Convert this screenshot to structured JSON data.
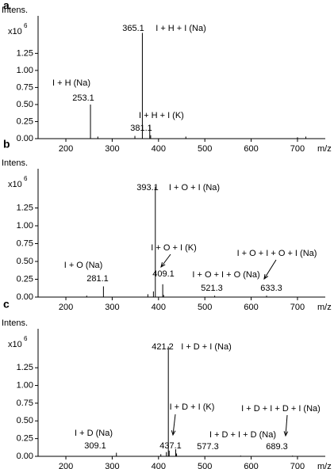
{
  "chart_data": [
    {
      "type": "stick",
      "panel": "a",
      "y_label": "Intens.",
      "multiplier": "x10",
      "exponent": "6",
      "x_label": "m/z",
      "xlim": [
        140,
        760
      ],
      "xticks": [
        200,
        300,
        400,
        500,
        600,
        700
      ],
      "ylim": [
        0,
        1.8
      ],
      "yticks": [
        {
          "value": 0,
          "label": "0.00"
        },
        0.25,
        {
          "value": 0.5,
          "label": "0.50"
        },
        0.75,
        {
          "value": 1,
          "label": "1.00"
        },
        1.25
      ],
      "color": "#000000",
      "peaks": [
        {
          "mz": 253.1,
          "intensity": 0.5,
          "label": "I + H (Na)"
        },
        {
          "mz": 365.1,
          "intensity": 1.55,
          "label": "I + H + I (Na)"
        },
        {
          "mz": 381.1,
          "intensity": 0.2,
          "label": "I + H + I (K)"
        }
      ],
      "minor_peaks": {
        "x": [
          269,
          349,
          383,
          459,
          700,
          718
        ],
        "values": [
          0.03,
          0.04,
          0.05,
          0.03,
          0.02,
          0.03
        ]
      }
    },
    {
      "type": "stick",
      "panel": "b",
      "y_label": "Intens.",
      "multiplier": "x10",
      "exponent": "6",
      "x_label": "m/z",
      "xlim": [
        140,
        760
      ],
      "xticks": [
        200,
        300,
        400,
        500,
        600,
        700
      ],
      "ylim": [
        0,
        1.8
      ],
      "yticks": [
        {
          "value": 0,
          "label": "0.00"
        },
        0.25,
        {
          "value": 0.5,
          "label": "0.50"
        },
        0.75,
        {
          "value": 1,
          "label": "1.00"
        },
        1.25
      ],
      "color": "#000000",
      "peaks": [
        {
          "mz": 281.1,
          "intensity": 0.15,
          "label": "I + O (Na)"
        },
        {
          "mz": 393.1,
          "intensity": 1.55,
          "label": "I + O + I (Na)"
        },
        {
          "mz": 409.1,
          "intensity": 0.18,
          "label": "I + O + I (K)"
        },
        {
          "mz": 521.3,
          "intensity": 0.02,
          "label": "I + O + I + O (Na)"
        },
        {
          "mz": 633.3,
          "intensity": 0.02,
          "label": "I + O + I + O + I (Na)"
        }
      ],
      "minor_peaks": {
        "x": [
          245,
          377,
          389,
          411
        ],
        "values": [
          0.02,
          0.04,
          0.08,
          0.03
        ]
      }
    },
    {
      "type": "stick",
      "panel": "c",
      "y_label": "Intens.",
      "multiplier": "x10",
      "exponent": "6",
      "x_label": "m/z",
      "xlim": [
        140,
        760
      ],
      "xticks": [
        200,
        300,
        400,
        500,
        600,
        700
      ],
      "ylim": [
        0,
        1.8
      ],
      "yticks": [
        {
          "value": 0,
          "label": "0.00"
        },
        0.25,
        {
          "value": 0.5,
          "label": "0.50"
        },
        0.75,
        {
          "value": 1,
          "label": "1.00"
        },
        1.25
      ],
      "color": "#000000",
      "peaks": [
        {
          "mz": 309.1,
          "intensity": 0.05,
          "label": "I + D (Na)"
        },
        {
          "mz": 421.2,
          "intensity": 1.55,
          "label": "I + D + I (Na)"
        },
        {
          "mz": 437.1,
          "intensity": 0.1,
          "label": "I + D + I (K)"
        },
        {
          "mz": 577.3,
          "intensity": 0.01,
          "label": "I + D + I + D (Na)"
        },
        {
          "mz": 689.3,
          "intensity": 0.01,
          "label": "I + D + I + D + I (Na)"
        }
      ],
      "minor_peaks": {
        "x": [
          405,
          417,
          423,
          439
        ],
        "values": [
          0.03,
          0.06,
          0.08,
          0.04
        ]
      }
    }
  ]
}
